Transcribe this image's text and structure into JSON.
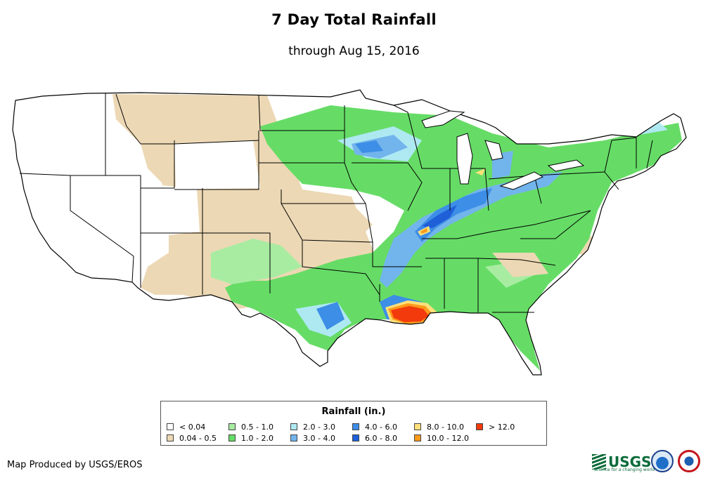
{
  "title": "7 Day Total Rainfall",
  "subtitle": "through Aug 15, 2016",
  "legend": {
    "title": "Rainfall (in.)",
    "items": [
      {
        "label": "< 0.04",
        "color": "#ffffff"
      },
      {
        "label": "0.04 - 0.5",
        "color": "#ecd8b4"
      },
      {
        "label": "0.5 - 1.0",
        "color": "#a8eca2"
      },
      {
        "label": "1.0 - 2.0",
        "color": "#66dc66"
      },
      {
        "label": "2.0 - 3.0",
        "color": "#aee9f2"
      },
      {
        "label": "3.0 - 4.0",
        "color": "#72b4ec"
      },
      {
        "label": "4.0 - 6.0",
        "color": "#3d8ee6"
      },
      {
        "label": "6.0 - 8.0",
        "color": "#1f5fd8"
      },
      {
        "label": "8.0 - 10.0",
        "color": "#ffe07a"
      },
      {
        "label": "10.0 - 12.0",
        "color": "#ff9a1a"
      },
      {
        "label": "> 12.0",
        "color": "#f23a0c"
      }
    ]
  },
  "credit": "Map Produced by USGS/EROS",
  "logos": {
    "usgs": "USGS",
    "usgs_tagline": "science for a changing world"
  }
}
